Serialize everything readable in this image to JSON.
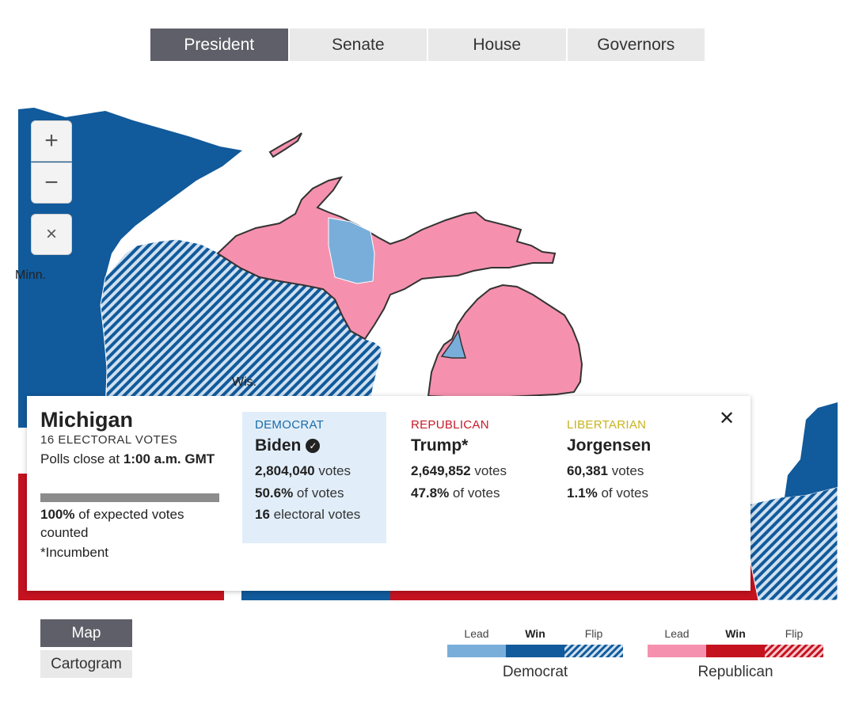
{
  "tabs": [
    {
      "label": "President",
      "active": true
    },
    {
      "label": "Senate",
      "active": false
    },
    {
      "label": "House",
      "active": false
    },
    {
      "label": "Governors",
      "active": false
    }
  ],
  "map": {
    "labels": {
      "minn": "Minn.",
      "wis": "Wis."
    },
    "controls": {
      "zoom_in": "+",
      "zoom_out": "−",
      "reset": "×"
    },
    "colors": {
      "dem_win": "#115a9b",
      "dem_lead": "#79aedb",
      "rep_win": "#c4121f",
      "rep_lead": "#f591ae",
      "water": "#ffffff"
    }
  },
  "panel": {
    "state": "Michigan",
    "electoral_votes": "16 ELECTORAL VOTES",
    "polls_prefix": "Polls close at ",
    "polls_time": "1:00 a.m. GMT",
    "counted_pct": "100%",
    "counted_fraction": 1.0,
    "counted_suffix": " of expected votes counted",
    "incumbent_note": "*Incumbent",
    "close": "✕",
    "candidates": [
      {
        "party": "DEMOCRAT",
        "name": "Biden",
        "winner": true,
        "votes": "2,804,040",
        "votes_suffix": " votes",
        "pct": "50.6%",
        "pct_suffix": " of votes",
        "ev": "16",
        "ev_suffix": " electoral votes"
      },
      {
        "party": "REPUBLICAN",
        "name": "Trump*",
        "winner": false,
        "votes": "2,649,852",
        "votes_suffix": " votes",
        "pct": "47.8%",
        "pct_suffix": " of votes"
      },
      {
        "party": "LIBERTARIAN",
        "name": "Jorgensen",
        "winner": false,
        "votes": "60,381",
        "votes_suffix": " votes",
        "pct": "1.1%",
        "pct_suffix": " of votes"
      }
    ]
  },
  "view": {
    "map": "Map",
    "cartogram": "Cartogram"
  },
  "legend": {
    "dem": {
      "lead": "Lead",
      "win": "Win",
      "flip": "Flip",
      "name": "Democrat"
    },
    "rep": {
      "lead": "Lead",
      "win": "Win",
      "flip": "Flip",
      "name": "Republican"
    }
  }
}
